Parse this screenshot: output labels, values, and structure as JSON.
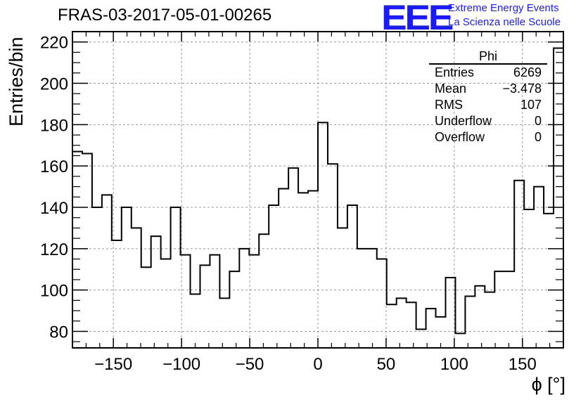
{
  "title": "FRAS-03-2017-05-01-00265",
  "logo": {
    "mark": "EEE",
    "line1": "Extreme Energy Events",
    "line2": "La Scienza nelle Scuole",
    "color": "#1a1aff"
  },
  "stats_box": {
    "name": "Phi",
    "rows": [
      {
        "label": "Entries",
        "value": "6269"
      },
      {
        "label": "Mean",
        "value": "−3.478"
      },
      {
        "label": "RMS",
        "value": "107"
      },
      {
        "label": "Underflow",
        "value": "0"
      },
      {
        "label": "Overflow",
        "value": "0"
      }
    ]
  },
  "chart_data": {
    "type": "bar",
    "style": "step-histogram",
    "xlabel": "ϕ [°]",
    "ylabel": "Entries/bin",
    "xlim": [
      -180,
      180
    ],
    "ylim": [
      72,
      225
    ],
    "xticks": [
      -150,
      -100,
      -50,
      0,
      50,
      100,
      150
    ],
    "yticks": [
      80,
      100,
      120,
      140,
      160,
      180,
      200,
      220
    ],
    "grid": true,
    "bin_width": 7.2,
    "bin_edges_start": -180,
    "values": [
      167,
      166,
      140,
      146,
      124,
      140,
      130,
      111,
      126,
      115,
      140,
      117,
      98,
      112,
      117,
      96,
      109,
      120,
      117,
      127,
      141,
      149,
      159,
      147,
      148,
      181,
      161,
      130,
      141,
      120,
      120,
      115,
      93,
      96,
      94,
      81,
      91,
      87,
      106,
      79,
      97,
      102,
      99,
      109,
      109,
      153,
      139,
      150,
      137,
      217
    ],
    "line_color": "#000000"
  }
}
